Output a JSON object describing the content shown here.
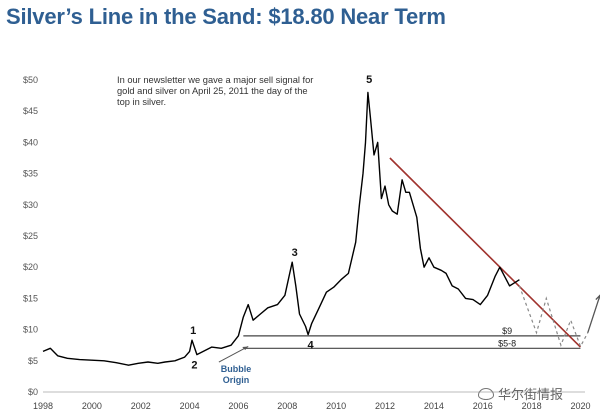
{
  "chart_data": {
    "type": "line",
    "title": "Silver’s Line in the Sand: $18.80 Near Term",
    "annotation": "In our newsletter we gave a major sell signal for gold and silver on April 25, 2011 the day of the top in silver.",
    "xlim": [
      1998,
      2020.8
    ],
    "ylim": [
      0,
      50
    ],
    "x_ticks": [
      "1998",
      "2000",
      "2002",
      "2004",
      "2006",
      "2008",
      "2010",
      "2012",
      "2014",
      "2016",
      "2018",
      "2020"
    ],
    "y_ticks": [
      "$0",
      "$5",
      "$10",
      "$15",
      "$20",
      "$25",
      "$30",
      "$35",
      "$40",
      "$45",
      "$50"
    ],
    "series": [
      {
        "color": "#000000",
        "x": [
          1998.0,
          1998.3,
          1998.6,
          1999.0,
          1999.5,
          2000.0,
          2000.5,
          2001.0,
          2001.5,
          2001.9,
          2002.3,
          2002.7,
          2003.0,
          2003.4,
          2003.8,
          2004.0,
          2004.1,
          2004.3,
          2004.5,
          2004.9,
          2005.3,
          2005.7,
          2006.0,
          2006.2,
          2006.4,
          2006.6,
          2006.9,
          2007.2,
          2007.6,
          2007.9,
          2008.1,
          2008.2,
          2008.35,
          2008.5,
          2008.75,
          2008.85,
          2009.0,
          2009.3,
          2009.6,
          2009.9,
          2010.2,
          2010.5,
          2010.8,
          2010.95,
          2011.1,
          2011.2,
          2011.3,
          2011.4,
          2011.55,
          2011.7,
          2011.85,
          2012.0,
          2012.15,
          2012.3,
          2012.5,
          2012.7,
          2012.85,
          2013.0,
          2013.15,
          2013.3,
          2013.45,
          2013.6,
          2013.8,
          2014.0,
          2014.3,
          2014.5,
          2014.75,
          2015.0,
          2015.3,
          2015.6,
          2015.9,
          2016.2,
          2016.5,
          2016.7,
          2016.9,
          2017.1,
          2017.3,
          2017.5
        ],
        "values": [
          6.5,
          7.0,
          5.8,
          5.4,
          5.2,
          5.1,
          5.0,
          4.7,
          4.3,
          4.6,
          4.8,
          4.6,
          4.8,
          5.0,
          5.6,
          6.5,
          8.3,
          6.0,
          6.4,
          7.2,
          7.0,
          7.5,
          9.0,
          12.0,
          14.0,
          11.5,
          12.5,
          13.5,
          14.0,
          15.5,
          19.0,
          20.8,
          17.0,
          12.5,
          10.5,
          9.2,
          11.0,
          13.5,
          16.0,
          16.8,
          18.0,
          19.0,
          24.0,
          30.0,
          35.0,
          40.0,
          48.0,
          44.0,
          38.0,
          40.0,
          31.0,
          33.0,
          30.0,
          29.0,
          28.5,
          34.0,
          32.0,
          32.0,
          30.0,
          28.0,
          23.0,
          20.0,
          21.5,
          20.0,
          19.5,
          19.0,
          17.0,
          16.5,
          15.0,
          14.8,
          14.0,
          15.5,
          18.5,
          20.0,
          18.5,
          17.0,
          17.5,
          18.0
        ]
      }
    ],
    "trendline": {
      "color": "#a0322d",
      "x": [
        2012.2,
        2020.0
      ],
      "values": [
        37.5,
        7.2
      ]
    },
    "support_levels": [
      {
        "label": "$9",
        "value": 9,
        "x_start": 2006.2,
        "x_end": 2020.0
      },
      {
        "label": "$5-8",
        "value": 7,
        "x_start": 2006.2,
        "x_end": 2020.0
      }
    ],
    "projection": {
      "color": "#888888",
      "x": [
        2017.5,
        2018.2,
        2018.6,
        2019.2,
        2019.6,
        2020.0,
        2020.3,
        2020.8
      ],
      "values": [
        17.0,
        9.5,
        15.0,
        7.5,
        11.5,
        7.3,
        9.5,
        15.5
      ]
    },
    "wave_labels": [
      {
        "text": "1",
        "x": 2004.15,
        "y": 9.3
      },
      {
        "text": "2",
        "x": 2004.2,
        "y": 3.8
      },
      {
        "text": "3",
        "x": 2008.3,
        "y": 21.8
      },
      {
        "text": "4",
        "x": 2008.95,
        "y": 7.0
      },
      {
        "text": "5",
        "x": 2011.35,
        "y": 49.5
      }
    ],
    "bubble_origin_label": "Bubble Origin",
    "bubble_origin_point": {
      "x": 2006.4,
      "y": 7.3
    },
    "grid": false,
    "legend": "none"
  },
  "watermark": {
    "text": "华尔街情报"
  }
}
